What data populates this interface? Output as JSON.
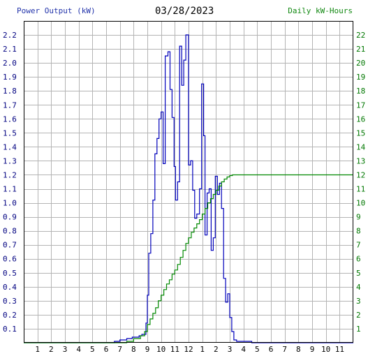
{
  "chart_data": {
    "type": "line",
    "title": "03/28/2023",
    "ylabel_left": "Power Output (kW)",
    "ylabel_right": "Daily kW-Hours",
    "ylim_left": [
      0,
      2.3
    ],
    "ylim_right": [
      0,
      23
    ],
    "xlim": [
      0,
      24
    ],
    "grid": true,
    "yticks_left": [
      "0.1",
      "0.2",
      "0.3",
      "0.4",
      "0.5",
      "0.6",
      "0.7",
      "0.8",
      "0.9",
      "1.0",
      "1.1",
      "1.2",
      "1.3",
      "1.4",
      "1.5",
      "1.6",
      "1.7",
      "1.8",
      "1.9",
      "2.0",
      "2.1",
      "2.2"
    ],
    "yticks_right": [
      "1",
      "2",
      "3",
      "4",
      "5",
      "6",
      "7",
      "8",
      "9",
      "10",
      "11",
      "12",
      "13",
      "14",
      "15",
      "16",
      "17",
      "18",
      "19",
      "20",
      "21",
      "22"
    ],
    "xticks": [
      "1",
      "2",
      "3",
      "4",
      "5",
      "6",
      "7",
      "8",
      "9",
      "10",
      "11",
      "12",
      "1",
      "2",
      "3",
      "4",
      "5",
      "6",
      "7",
      "8",
      "9",
      "10",
      "11"
    ],
    "series": [
      {
        "axis": "left",
        "color": "#0000bb",
        "points": [
          [
            0,
            0
          ],
          [
            6.6,
            0
          ],
          [
            6.6,
            0.01
          ],
          [
            7.0,
            0.01
          ],
          [
            7.0,
            0.02
          ],
          [
            7.5,
            0.02
          ],
          [
            7.5,
            0.03
          ],
          [
            7.9,
            0.03
          ],
          [
            7.9,
            0.04
          ],
          [
            8.4,
            0.04
          ],
          [
            8.4,
            0.05
          ],
          [
            8.6,
            0.05
          ],
          [
            8.6,
            0.06
          ],
          [
            8.9,
            0.06
          ],
          [
            8.9,
            0.14
          ],
          [
            9.0,
            0.14
          ],
          [
            9.0,
            0.34
          ],
          [
            9.1,
            0.34
          ],
          [
            9.1,
            0.64
          ],
          [
            9.25,
            0.64
          ],
          [
            9.25,
            0.78
          ],
          [
            9.4,
            0.78
          ],
          [
            9.4,
            1.02
          ],
          [
            9.55,
            1.02
          ],
          [
            9.55,
            1.35
          ],
          [
            9.7,
            1.35
          ],
          [
            9.7,
            1.46
          ],
          [
            9.85,
            1.46
          ],
          [
            9.85,
            1.6
          ],
          [
            10.0,
            1.6
          ],
          [
            10.0,
            1.65
          ],
          [
            10.15,
            1.65
          ],
          [
            10.15,
            1.28
          ],
          [
            10.3,
            1.28
          ],
          [
            10.3,
            2.05
          ],
          [
            10.5,
            2.05
          ],
          [
            10.5,
            2.08
          ],
          [
            10.65,
            2.08
          ],
          [
            10.65,
            1.81
          ],
          [
            10.8,
            1.81
          ],
          [
            10.8,
            1.61
          ],
          [
            10.95,
            1.61
          ],
          [
            10.95,
            1.26
          ],
          [
            11.05,
            1.26
          ],
          [
            11.05,
            1.02
          ],
          [
            11.2,
            1.02
          ],
          [
            11.2,
            1.15
          ],
          [
            11.35,
            1.15
          ],
          [
            11.35,
            2.12
          ],
          [
            11.5,
            2.12
          ],
          [
            11.5,
            1.84
          ],
          [
            11.65,
            1.84
          ],
          [
            11.65,
            2.02
          ],
          [
            11.8,
            2.02
          ],
          [
            11.8,
            2.2
          ],
          [
            12.0,
            2.2
          ],
          [
            12.0,
            1.27
          ],
          [
            12.15,
            1.27
          ],
          [
            12.15,
            1.3
          ],
          [
            12.3,
            1.3
          ],
          [
            12.3,
            1.09
          ],
          [
            12.45,
            1.09
          ],
          [
            12.45,
            0.89
          ],
          [
            12.6,
            0.89
          ],
          [
            12.6,
            0.92
          ],
          [
            12.8,
            0.92
          ],
          [
            12.8,
            1.1
          ],
          [
            12.95,
            1.1
          ],
          [
            12.95,
            1.85
          ],
          [
            13.1,
            1.85
          ],
          [
            13.1,
            1.48
          ],
          [
            13.2,
            1.48
          ],
          [
            13.2,
            0.77
          ],
          [
            13.35,
            0.77
          ],
          [
            13.35,
            1.07
          ],
          [
            13.5,
            1.07
          ],
          [
            13.5,
            1.1
          ],
          [
            13.65,
            1.1
          ],
          [
            13.65,
            0.66
          ],
          [
            13.8,
            0.66
          ],
          [
            13.8,
            0.75
          ],
          [
            13.95,
            0.75
          ],
          [
            13.95,
            1.19
          ],
          [
            14.1,
            1.19
          ],
          [
            14.1,
            1.06
          ],
          [
            14.25,
            1.06
          ],
          [
            14.25,
            1.14
          ],
          [
            14.4,
            1.14
          ],
          [
            14.4,
            0.96
          ],
          [
            14.55,
            0.96
          ],
          [
            14.55,
            0.46
          ],
          [
            14.7,
            0.46
          ],
          [
            14.7,
            0.29
          ],
          [
            14.85,
            0.29
          ],
          [
            14.85,
            0.35
          ],
          [
            15.0,
            0.35
          ],
          [
            15.0,
            0.18
          ],
          [
            15.15,
            0.18
          ],
          [
            15.15,
            0.08
          ],
          [
            15.3,
            0.08
          ],
          [
            15.3,
            0.02
          ],
          [
            15.5,
            0.02
          ],
          [
            15.5,
            0.01
          ],
          [
            16.6,
            0.01
          ],
          [
            16.6,
            0
          ],
          [
            24,
            0
          ]
        ]
      },
      {
        "axis": "right",
        "color": "#008800",
        "points": [
          [
            0,
            0
          ],
          [
            7.5,
            0
          ],
          [
            7.5,
            0.1
          ],
          [
            8.0,
            0.1
          ],
          [
            8.0,
            0.3
          ],
          [
            8.5,
            0.3
          ],
          [
            8.5,
            0.5
          ],
          [
            8.8,
            0.5
          ],
          [
            8.8,
            0.8
          ],
          [
            9.0,
            0.8
          ],
          [
            9.0,
            1.3
          ],
          [
            9.2,
            1.3
          ],
          [
            9.2,
            1.7
          ],
          [
            9.4,
            1.7
          ],
          [
            9.4,
            2.1
          ],
          [
            9.6,
            2.1
          ],
          [
            9.6,
            2.5
          ],
          [
            9.8,
            2.5
          ],
          [
            9.8,
            3.0
          ],
          [
            10.0,
            3.0
          ],
          [
            10.0,
            3.4
          ],
          [
            10.2,
            3.4
          ],
          [
            10.2,
            3.8
          ],
          [
            10.4,
            3.8
          ],
          [
            10.4,
            4.2
          ],
          [
            10.6,
            4.2
          ],
          [
            10.6,
            4.5
          ],
          [
            10.8,
            4.5
          ],
          [
            10.8,
            4.9
          ],
          [
            11.0,
            4.9
          ],
          [
            11.0,
            5.2
          ],
          [
            11.2,
            5.2
          ],
          [
            11.2,
            5.6
          ],
          [
            11.4,
            5.6
          ],
          [
            11.4,
            6.1
          ],
          [
            11.6,
            6.1
          ],
          [
            11.6,
            6.6
          ],
          [
            11.8,
            6.6
          ],
          [
            11.8,
            7.1
          ],
          [
            12.0,
            7.1
          ],
          [
            12.0,
            7.5
          ],
          [
            12.2,
            7.5
          ],
          [
            12.2,
            7.9
          ],
          [
            12.4,
            7.9
          ],
          [
            12.4,
            8.2
          ],
          [
            12.6,
            8.2
          ],
          [
            12.6,
            8.5
          ],
          [
            12.8,
            8.5
          ],
          [
            12.8,
            8.8
          ],
          [
            13.0,
            8.8
          ],
          [
            13.0,
            9.2
          ],
          [
            13.2,
            9.2
          ],
          [
            13.2,
            9.6
          ],
          [
            13.4,
            9.6
          ],
          [
            13.4,
            10.0
          ],
          [
            13.6,
            10.0
          ],
          [
            13.6,
            10.3
          ],
          [
            13.8,
            10.3
          ],
          [
            13.8,
            10.6
          ],
          [
            14.0,
            10.6
          ],
          [
            14.0,
            10.9
          ],
          [
            14.2,
            10.9
          ],
          [
            14.2,
            11.2
          ],
          [
            14.4,
            11.2
          ],
          [
            14.4,
            11.5
          ],
          [
            14.6,
            11.5
          ],
          [
            14.6,
            11.7
          ],
          [
            14.8,
            11.7
          ],
          [
            14.8,
            11.85
          ],
          [
            15.0,
            11.85
          ],
          [
            15.0,
            11.95
          ],
          [
            15.2,
            11.95
          ],
          [
            15.2,
            12.0
          ],
          [
            24,
            12.0
          ]
        ]
      }
    ]
  }
}
